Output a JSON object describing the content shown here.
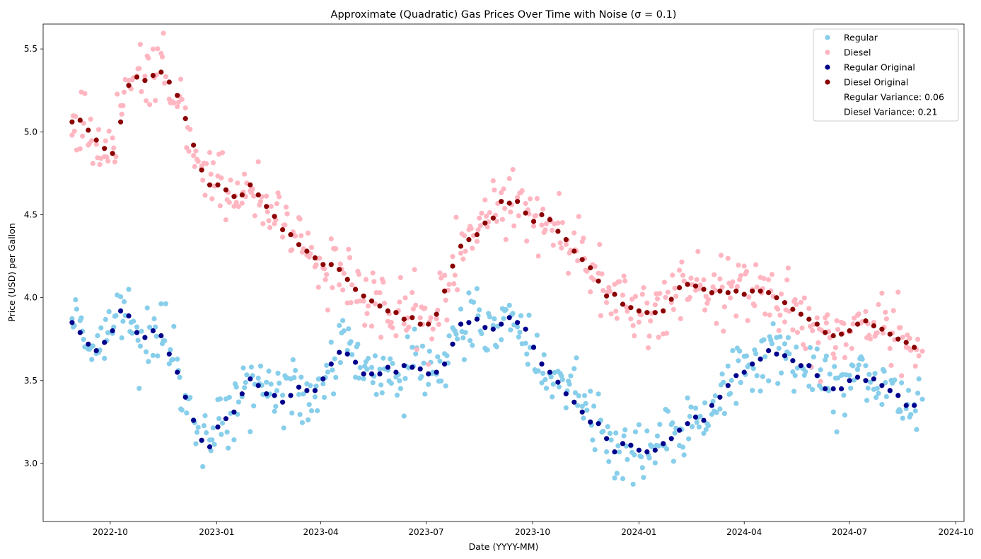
{
  "chart_data": {
    "type": "scatter",
    "title": "Approximate (Quadratic) Gas Prices Over Time with Noise (σ = 0.1)",
    "xlabel": "Date (YYYY-MM)",
    "ylabel": "Price (USD) per Gallon",
    "xlim": [
      "2022-08-04",
      "2024-10-08"
    ],
    "ylim": [
      2.65,
      5.65
    ],
    "x_ticks": [
      "2022-10",
      "2023-01",
      "2023-04",
      "2023-07",
      "2023-10",
      "2024-01",
      "2024-04",
      "2024-07",
      "2024-10"
    ],
    "y_ticks": [
      "3.0",
      "3.5",
      "4.0",
      "4.5",
      "5.0",
      "5.5"
    ],
    "grid": false,
    "legend_position": "top-right",
    "colors": {
      "regular": "#87ceeb",
      "diesel": "#ffb6c1",
      "regular_original": "#00008b",
      "diesel_original": "#8b0000"
    },
    "legend": [
      {
        "label": "Regular",
        "series": "regular"
      },
      {
        "label": "Diesel",
        "series": "diesel"
      },
      {
        "label": "Regular Original",
        "series": "regular_original"
      },
      {
        "label": "Diesel Original",
        "series": "diesel_original"
      },
      {
        "label": "Regular Variance: 0.06",
        "series": null
      },
      {
        "label": "Diesel Variance: 0.21",
        "series": null
      }
    ],
    "series": [
      {
        "name": "Regular Original",
        "key": "regular_original",
        "x": [
          "2022-08-29",
          "2022-09-05",
          "2022-09-12",
          "2022-09-19",
          "2022-09-26",
          "2022-10-03",
          "2022-10-10",
          "2022-10-17",
          "2022-10-24",
          "2022-10-31",
          "2022-11-07",
          "2022-11-14",
          "2022-11-21",
          "2022-11-28",
          "2022-12-05",
          "2022-12-12",
          "2022-12-19",
          "2022-12-26",
          "2023-01-02",
          "2023-01-09",
          "2023-01-16",
          "2023-01-23",
          "2023-01-30",
          "2023-02-06",
          "2023-02-13",
          "2023-02-20",
          "2023-02-27",
          "2023-03-06",
          "2023-03-13",
          "2023-03-20",
          "2023-03-27",
          "2023-04-03",
          "2023-04-10",
          "2023-04-17",
          "2023-04-24",
          "2023-05-01",
          "2023-05-08",
          "2023-05-15",
          "2023-05-22",
          "2023-05-29",
          "2023-06-05",
          "2023-06-12",
          "2023-06-19",
          "2023-06-26",
          "2023-07-03",
          "2023-07-10",
          "2023-07-17",
          "2023-07-24",
          "2023-07-31",
          "2023-08-07",
          "2023-08-14",
          "2023-08-21",
          "2023-08-28",
          "2023-09-04",
          "2023-09-11",
          "2023-09-18",
          "2023-09-25",
          "2023-10-02",
          "2023-10-09",
          "2023-10-16",
          "2023-10-23",
          "2023-10-30",
          "2023-11-06",
          "2023-11-13",
          "2023-11-20",
          "2023-11-27",
          "2023-12-04",
          "2023-12-11",
          "2023-12-18",
          "2023-12-25",
          "2024-01-01",
          "2024-01-08",
          "2024-01-15",
          "2024-01-22",
          "2024-01-29",
          "2024-02-05",
          "2024-02-12",
          "2024-02-19",
          "2024-02-26",
          "2024-03-04",
          "2024-03-11",
          "2024-03-18",
          "2024-03-25",
          "2024-04-01",
          "2024-04-08",
          "2024-04-15",
          "2024-04-22",
          "2024-04-29",
          "2024-05-06",
          "2024-05-13",
          "2024-05-20",
          "2024-05-27",
          "2024-06-03",
          "2024-06-10",
          "2024-06-17",
          "2024-06-24",
          "2024-07-01",
          "2024-07-08",
          "2024-07-15",
          "2024-07-22",
          "2024-07-29",
          "2024-08-05",
          "2024-08-12",
          "2024-08-19",
          "2024-08-26"
        ],
        "y": [
          3.85,
          3.79,
          3.72,
          3.68,
          3.73,
          3.8,
          3.92,
          3.89,
          3.79,
          3.76,
          3.8,
          3.77,
          3.66,
          3.55,
          3.4,
          3.26,
          3.14,
          3.1,
          3.22,
          3.27,
          3.31,
          3.42,
          3.51,
          3.47,
          3.42,
          3.41,
          3.37,
          3.41,
          3.46,
          3.44,
          3.44,
          3.51,
          3.6,
          3.67,
          3.66,
          3.61,
          3.54,
          3.54,
          3.54,
          3.58,
          3.55,
          3.59,
          3.58,
          3.57,
          3.54,
          3.55,
          3.6,
          3.72,
          3.84,
          3.85,
          3.87,
          3.82,
          3.81,
          3.84,
          3.88,
          3.85,
          3.81,
          3.7,
          3.6,
          3.55,
          3.49,
          3.42,
          3.37,
          3.31,
          3.25,
          3.24,
          3.15,
          3.07,
          3.12,
          3.11,
          3.08,
          3.07,
          3.08,
          3.12,
          3.15,
          3.2,
          3.24,
          3.28,
          3.26,
          3.35,
          3.4,
          3.47,
          3.53,
          3.55,
          3.6,
          3.63,
          3.68,
          3.66,
          3.65,
          3.62,
          3.59,
          3.59,
          3.53,
          3.45,
          3.45,
          3.45,
          3.5,
          3.52,
          3.5,
          3.51,
          3.47,
          3.44,
          3.41,
          3.35,
          3.35
        ]
      },
      {
        "name": "Diesel Original",
        "key": "diesel_original",
        "x": [
          "2022-08-29",
          "2022-09-05",
          "2022-09-12",
          "2022-09-19",
          "2022-09-26",
          "2022-10-03",
          "2022-10-10",
          "2022-10-17",
          "2022-10-24",
          "2022-10-31",
          "2022-11-07",
          "2022-11-14",
          "2022-11-21",
          "2022-11-28",
          "2022-12-05",
          "2022-12-12",
          "2022-12-19",
          "2022-12-26",
          "2023-01-02",
          "2023-01-09",
          "2023-01-16",
          "2023-01-23",
          "2023-01-30",
          "2023-02-06",
          "2023-02-13",
          "2023-02-20",
          "2023-02-27",
          "2023-03-06",
          "2023-03-13",
          "2023-03-20",
          "2023-03-27",
          "2023-04-03",
          "2023-04-10",
          "2023-04-17",
          "2023-04-24",
          "2023-05-01",
          "2023-05-08",
          "2023-05-15",
          "2023-05-22",
          "2023-05-29",
          "2023-06-05",
          "2023-06-12",
          "2023-06-19",
          "2023-06-26",
          "2023-07-03",
          "2023-07-10",
          "2023-07-17",
          "2023-07-24",
          "2023-07-31",
          "2023-08-07",
          "2023-08-14",
          "2023-08-21",
          "2023-08-28",
          "2023-09-04",
          "2023-09-11",
          "2023-09-18",
          "2023-09-25",
          "2023-10-02",
          "2023-10-09",
          "2023-10-16",
          "2023-10-23",
          "2023-10-30",
          "2023-11-06",
          "2023-11-13",
          "2023-11-20",
          "2023-11-27",
          "2023-12-04",
          "2023-12-11",
          "2023-12-18",
          "2023-12-25",
          "2024-01-01",
          "2024-01-08",
          "2024-01-15",
          "2024-01-22",
          "2024-01-29",
          "2024-02-05",
          "2024-02-12",
          "2024-02-19",
          "2024-02-26",
          "2024-03-04",
          "2024-03-11",
          "2024-03-18",
          "2024-03-25",
          "2024-04-01",
          "2024-04-08",
          "2024-04-15",
          "2024-04-22",
          "2024-04-29",
          "2024-05-06",
          "2024-05-13",
          "2024-05-20",
          "2024-05-27",
          "2024-06-03",
          "2024-06-10",
          "2024-06-17",
          "2024-06-24",
          "2024-07-01",
          "2024-07-08",
          "2024-07-15",
          "2024-07-22",
          "2024-07-29",
          "2024-08-05",
          "2024-08-12",
          "2024-08-19",
          "2024-08-26"
        ],
        "y": [
          5.06,
          5.07,
          5.01,
          4.95,
          4.9,
          4.87,
          5.06,
          5.28,
          5.33,
          5.31,
          5.34,
          5.36,
          5.3,
          5.22,
          5.08,
          4.92,
          4.77,
          4.68,
          4.68,
          4.65,
          4.61,
          4.62,
          4.68,
          4.62,
          4.55,
          4.49,
          4.41,
          4.38,
          4.32,
          4.28,
          4.24,
          4.2,
          4.2,
          4.17,
          4.11,
          4.05,
          4.01,
          3.98,
          3.95,
          3.92,
          3.91,
          3.87,
          3.88,
          3.84,
          3.84,
          3.9,
          4.04,
          4.19,
          4.31,
          4.35,
          4.38,
          4.45,
          4.48,
          4.58,
          4.57,
          4.58,
          4.51,
          4.46,
          4.5,
          4.47,
          4.4,
          4.35,
          4.28,
          4.23,
          4.18,
          4.1,
          4.01,
          4.02,
          3.96,
          3.94,
          3.92,
          3.91,
          3.91,
          3.92,
          3.99,
          4.06,
          4.08,
          4.07,
          4.05,
          4.03,
          4.04,
          4.03,
          4.04,
          4.02,
          4.04,
          4.04,
          4.03,
          4.0,
          3.97,
          3.93,
          3.9,
          3.87,
          3.84,
          3.79,
          3.77,
          3.78,
          3.8,
          3.84,
          3.86,
          3.83,
          3.81,
          3.78,
          3.75,
          3.73,
          3.7
        ]
      }
    ]
  }
}
